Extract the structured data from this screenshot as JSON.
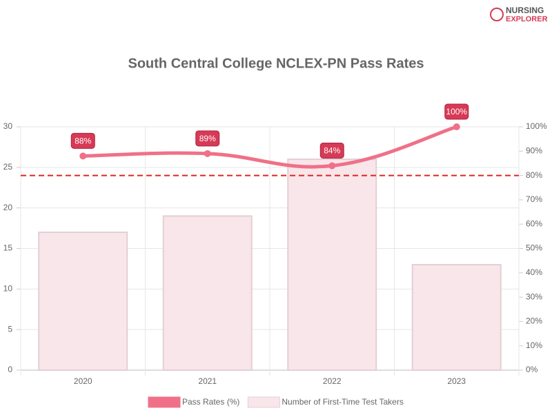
{
  "brand": {
    "line1": "NURSING",
    "line2": "EXPLORER"
  },
  "chart_data": {
    "type": "combo",
    "title": "South Central College NCLEX-PN Pass Rates",
    "categories": [
      "2020",
      "2021",
      "2022",
      "2023"
    ],
    "series": [
      {
        "name": "Pass Rates (%)",
        "type": "line",
        "axis": "y2",
        "color": "#f07088",
        "values": [
          88,
          89,
          84,
          100
        ],
        "value_labels": [
          "88%",
          "89%",
          "84%",
          "100%"
        ]
      },
      {
        "name": "Number of First-Time Test Takers",
        "type": "bar",
        "color": "#f8e6ea",
        "values": [
          17,
          19,
          26,
          13
        ]
      }
    ],
    "ylim": [
      0,
      30
    ],
    "yticks": [
      0,
      5,
      10,
      15,
      20,
      25,
      30
    ],
    "y2lim": [
      0,
      100
    ],
    "y2ticks": [
      {
        "value": 0,
        "label": "0%"
      },
      {
        "value": 10,
        "label": "10%"
      },
      {
        "value": 20,
        "label": "20%"
      },
      {
        "value": 30,
        "label": "30%"
      },
      {
        "value": 40,
        "label": "40%"
      },
      {
        "value": 50,
        "label": "50%"
      },
      {
        "value": 60,
        "label": "60%"
      },
      {
        "value": 70,
        "label": "70%"
      },
      {
        "value": 80,
        "label": "80%"
      },
      {
        "value": 90,
        "label": "90%"
      },
      {
        "value": 100,
        "label": "100%"
      }
    ],
    "threshold": {
      "value": 80,
      "axis": "y2",
      "color": "#e02020"
    },
    "grid": true,
    "legend": "bottom"
  }
}
